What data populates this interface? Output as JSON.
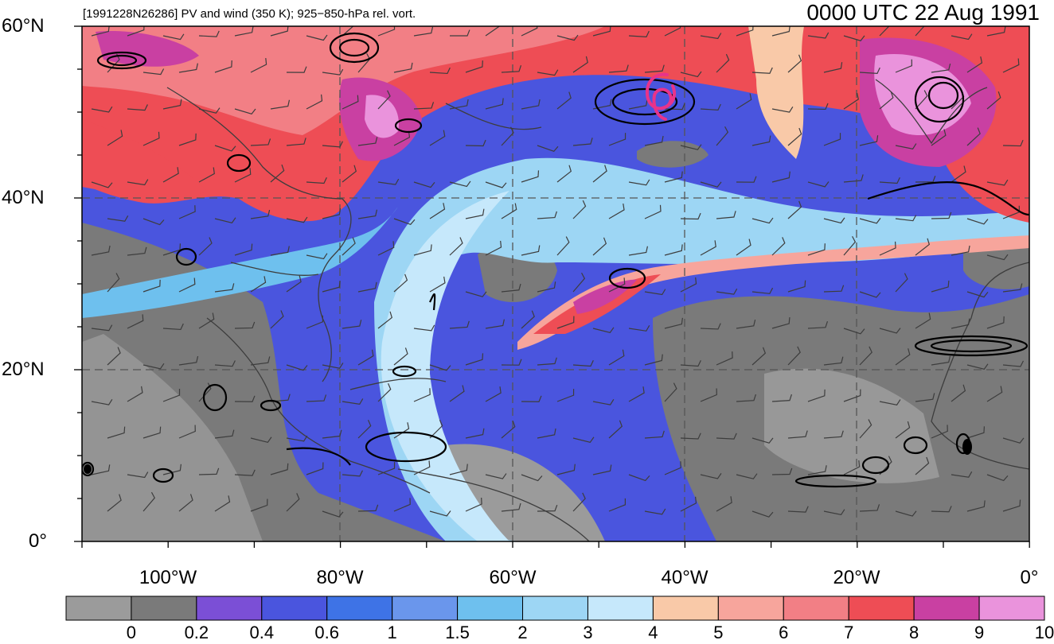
{
  "header": {
    "subtitle": "[1991228N26286] PV and wind (350 K); 925−850-hPa rel. vort.",
    "valid_time": "0000 UTC 22 Aug 1991"
  },
  "map": {
    "lat_labels": [
      "60°N",
      "40°N",
      "20°N",
      "0°"
    ],
    "lon_labels": [
      "100°W",
      "80°W",
      "60°W",
      "40°W",
      "20°W",
      "0°"
    ],
    "storm_symbol": "tropical-cyclone-icon",
    "storm_color": "#e8338a",
    "contour_color": "#000000",
    "gridline_color": "#555555"
  },
  "colorbar": {
    "levels": [
      "0",
      "0.2",
      "0.4",
      "0.6",
      "1",
      "1.5",
      "2",
      "3",
      "4",
      "5",
      "6",
      "7",
      "8",
      "9",
      "10"
    ],
    "colors": [
      "#9b9b9b",
      "#7a7a7a",
      "#7b4fd6",
      "#4a55de",
      "#3e73e6",
      "#6a96ec",
      "#6ec0ee",
      "#9dd6f4",
      "#c6e8fb",
      "#f9c9a8",
      "#f7a59c",
      "#f27f85",
      "#ee4d55",
      "#c940a2",
      "#ea93dc"
    ]
  }
}
